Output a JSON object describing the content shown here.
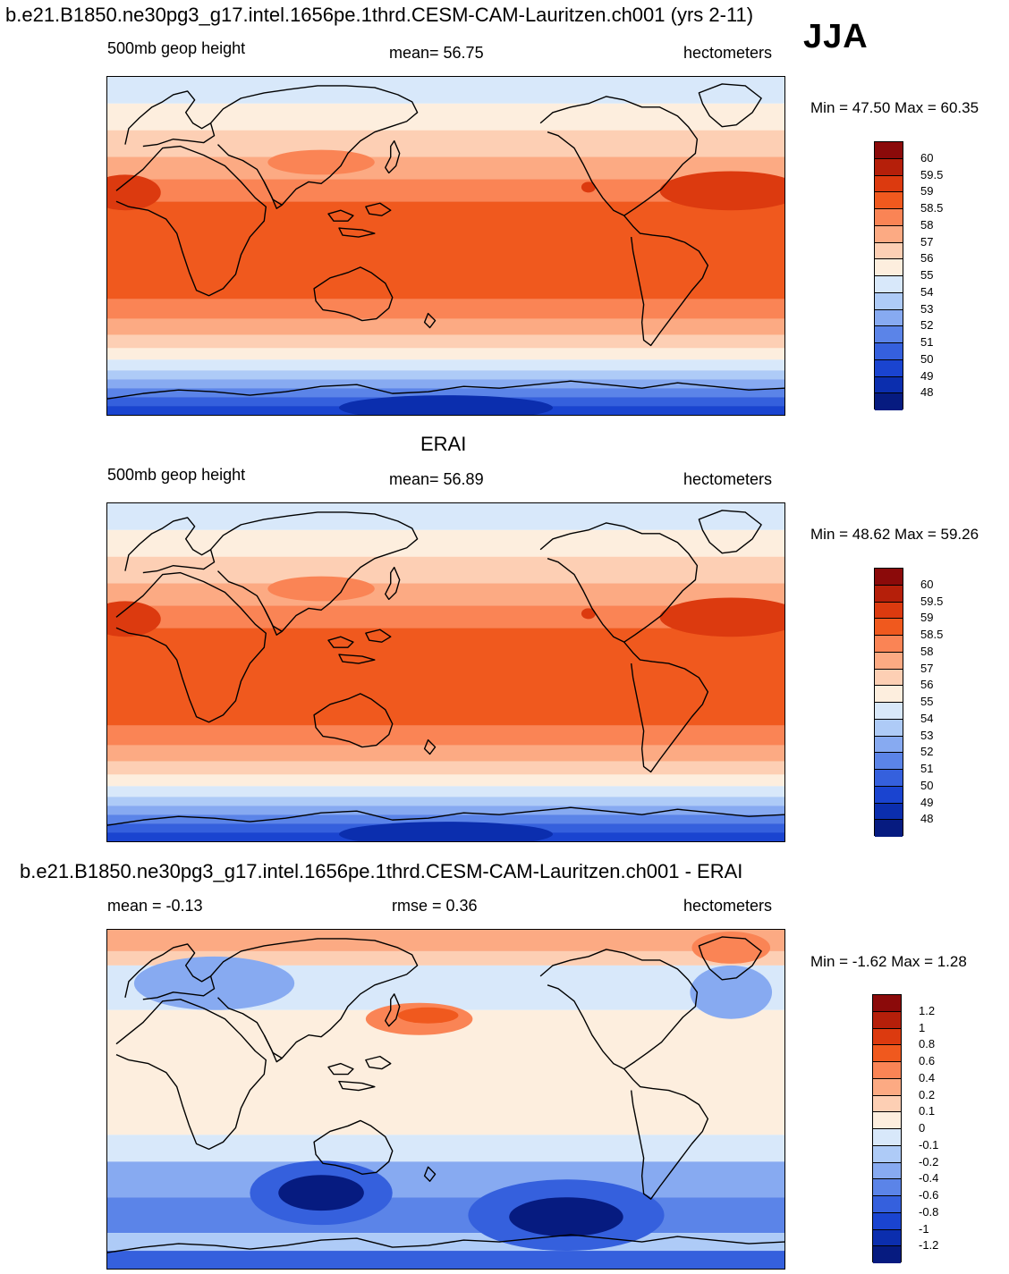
{
  "header": {
    "main_title": "b.e21.B1850.ne30pg3_g17.intel.1656pe.1thrd.CESM-CAM-Lauritzen.ch001 (yrs 2-11)",
    "season": "JJA"
  },
  "panels": [
    {
      "title": "",
      "left_label": "500mb geop height",
      "center_label": "mean=  56.75",
      "units": "hectometers",
      "minmax": "Min =  47.50 Max =  60.35",
      "colorbar": {
        "colors": [
          "#8b0a0a",
          "#b51f0a",
          "#dc3a0f",
          "#f0591e",
          "#fa8455",
          "#fcaa83",
          "#fdcfb4",
          "#fdeede",
          "#d8e8fa",
          "#aecbf7",
          "#87aaf1",
          "#5b84e8",
          "#3560dd",
          "#1a44d0",
          "#0b2eae",
          "#061b80"
        ],
        "labels": [
          "60",
          "59.5",
          "59",
          "58.5",
          "58",
          "57",
          "56",
          "55",
          "54",
          "53",
          "52",
          "51",
          "50",
          "49",
          "48"
        ]
      }
    },
    {
      "title": "ERAI",
      "left_label": "500mb geop height",
      "center_label": "mean=  56.89",
      "units": "hectometers",
      "minmax": "Min =  48.62 Max =  59.26",
      "colorbar": {
        "colors": [
          "#8b0a0a",
          "#b51f0a",
          "#dc3a0f",
          "#f0591e",
          "#fa8455",
          "#fcaa83",
          "#fdcfb4",
          "#fdeede",
          "#d8e8fa",
          "#aecbf7",
          "#87aaf1",
          "#5b84e8",
          "#3560dd",
          "#1a44d0",
          "#0b2eae",
          "#061b80"
        ],
        "labels": [
          "60",
          "59.5",
          "59",
          "58.5",
          "58",
          "57",
          "56",
          "55",
          "54",
          "53",
          "52",
          "51",
          "50",
          "49",
          "48"
        ]
      }
    },
    {
      "title": "b.e21.B1850.ne30pg3_g17.intel.1656pe.1thrd.CESM-CAM-Lauritzen.ch001 - ERAI",
      "left_label": "mean =  -0.13",
      "center_label": "rmse =   0.36",
      "units": "hectometers",
      "minmax": "Min =  -1.62 Max =   1.28",
      "colorbar": {
        "colors": [
          "#8b0a0a",
          "#b51f0a",
          "#dc3a0f",
          "#f0591e",
          "#fa8455",
          "#fcaa83",
          "#fdcfb4",
          "#fdeede",
          "#d8e8fa",
          "#aecbf7",
          "#87aaf1",
          "#5b84e8",
          "#3560dd",
          "#1a44d0",
          "#0b2eae",
          "#061b80"
        ],
        "labels": [
          "1.2",
          "1",
          "0.8",
          "0.6",
          "0.4",
          "0.2",
          "0.1",
          "0",
          "-0.1",
          "-0.2",
          "-0.4",
          "-0.6",
          "-0.8",
          "-1",
          "-1.2"
        ]
      }
    }
  ]
}
